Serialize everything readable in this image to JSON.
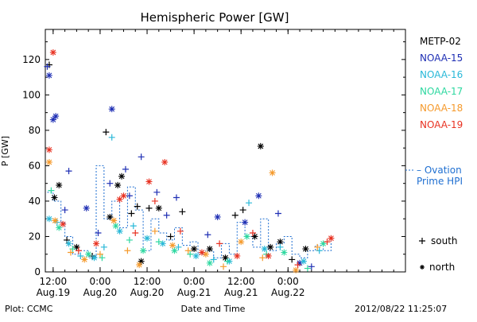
{
  "chart_data": {
    "type": "scatter",
    "title": "Hemispheric Power [GW]",
    "ylabel": "P [GW]",
    "xlabel": "Date and Time",
    "ylim": [
      0,
      137
    ],
    "yticks": [
      0,
      20,
      40,
      60,
      80,
      100,
      120
    ],
    "xlim": [
      "2012-08-19T10:00",
      "2012-08-23T06:00"
    ],
    "xticks": [
      {
        "time": "2012-08-19T12:00",
        "label1": "12:00",
        "label2": "Aug.19"
      },
      {
        "time": "2012-08-20T00:00",
        "label1": "0:00",
        "label2": "Aug.20"
      },
      {
        "time": "2012-08-20T12:00",
        "label1": "12:00",
        "label2": "Aug.20"
      },
      {
        "time": "2012-08-21T00:00",
        "label1": "0:00",
        "label2": "Aug.21"
      },
      {
        "time": "2012-08-21T12:00",
        "label1": "12:00",
        "label2": "Aug.21"
      },
      {
        "time": "2012-08-22T00:00",
        "label1": "0:00",
        "label2": "Aug.22"
      }
    ],
    "footer_left": "Plot: CCMC",
    "footer_right": "2012/08/22 11:25:07",
    "marker_legend": {
      "south": "south",
      "north": "north"
    },
    "ovation_label": [
      "– Ovation",
      "Prime HPI"
    ],
    "ovation_color": "#1f6fd1",
    "series": [
      {
        "name": "METP-02",
        "color": "#000000",
        "points": [
          {
            "t": "2012-08-19T11:00",
            "v": 117,
            "m": "+"
          },
          {
            "t": "2012-08-19T12:20",
            "v": 42,
            "m": "*"
          },
          {
            "t": "2012-08-19T13:30",
            "v": 49,
            "m": "*"
          },
          {
            "t": "2012-08-19T15:30",
            "v": 18,
            "m": "+"
          },
          {
            "t": "2012-08-19T18:00",
            "v": 14,
            "m": "*"
          },
          {
            "t": "2012-08-19T22:00",
            "v": 9,
            "m": "+"
          },
          {
            "t": "2012-08-20T01:30",
            "v": 79,
            "m": "+"
          },
          {
            "t": "2012-08-20T02:30",
            "v": 31,
            "m": "*"
          },
          {
            "t": "2012-08-20T04:30",
            "v": 49,
            "m": "*"
          },
          {
            "t": "2012-08-20T05:30",
            "v": 54,
            "m": "*"
          },
          {
            "t": "2012-08-20T08:00",
            "v": 33,
            "m": "+"
          },
          {
            "t": "2012-08-20T09:30",
            "v": 37,
            "m": "+"
          },
          {
            "t": "2012-08-20T10:30",
            "v": 6,
            "m": "*"
          },
          {
            "t": "2012-08-20T12:30",
            "v": 36,
            "m": "+"
          },
          {
            "t": "2012-08-20T15:00",
            "v": 36,
            "m": "*"
          },
          {
            "t": "2012-08-20T18:00",
            "v": 20,
            "m": "+"
          },
          {
            "t": "2012-08-20T21:00",
            "v": 34,
            "m": "+"
          },
          {
            "t": "2012-08-21T00:00",
            "v": 13,
            "m": "*"
          },
          {
            "t": "2012-08-21T04:00",
            "v": 13,
            "m": "*"
          },
          {
            "t": "2012-08-21T08:00",
            "v": 8,
            "m": "*"
          },
          {
            "t": "2012-08-21T10:30",
            "v": 32,
            "m": "+"
          },
          {
            "t": "2012-08-21T12:30",
            "v": 35,
            "m": "+"
          },
          {
            "t": "2012-08-21T15:30",
            "v": 20,
            "m": "*"
          },
          {
            "t": "2012-08-21T17:00",
            "v": 71,
            "m": "*"
          },
          {
            "t": "2012-08-21T19:30",
            "v": 14,
            "m": "*"
          },
          {
            "t": "2012-08-21T22:00",
            "v": 17,
            "m": "*"
          },
          {
            "t": "2012-08-22T01:00",
            "v": 7,
            "m": "+"
          },
          {
            "t": "2012-08-22T04:30",
            "v": 13,
            "m": "*"
          }
        ]
      },
      {
        "name": "NOAA-15",
        "color": "#1f2fb4",
        "points": [
          {
            "t": "2012-08-19T10:30",
            "v": 116,
            "m": "+"
          },
          {
            "t": "2012-08-19T11:00",
            "v": 111,
            "m": "*"
          },
          {
            "t": "2012-08-19T12:00",
            "v": 86,
            "m": "*"
          },
          {
            "t": "2012-08-19T12:40",
            "v": 88,
            "m": "*"
          },
          {
            "t": "2012-08-19T15:00",
            "v": 35,
            "m": "+"
          },
          {
            "t": "2012-08-19T16:00",
            "v": 57,
            "m": "+"
          },
          {
            "t": "2012-08-19T20:30",
            "v": 36,
            "m": "*"
          },
          {
            "t": "2012-08-19T23:30",
            "v": 22,
            "m": "+"
          },
          {
            "t": "2012-08-20T02:30",
            "v": 50,
            "m": "+"
          },
          {
            "t": "2012-08-20T03:00",
            "v": 92,
            "m": "*"
          },
          {
            "t": "2012-08-20T06:30",
            "v": 58,
            "m": "+"
          },
          {
            "t": "2012-08-20T07:30",
            "v": 43,
            "m": "+"
          },
          {
            "t": "2012-08-20T10:30",
            "v": 65,
            "m": "+"
          },
          {
            "t": "2012-08-20T14:30",
            "v": 45,
            "m": "+"
          },
          {
            "t": "2012-08-20T17:00",
            "v": 32,
            "m": "+"
          },
          {
            "t": "2012-08-20T19:30",
            "v": 42,
            "m": "+"
          },
          {
            "t": "2012-08-21T03:30",
            "v": 21,
            "m": "+"
          },
          {
            "t": "2012-08-21T06:00",
            "v": 31,
            "m": "*"
          },
          {
            "t": "2012-08-21T13:00",
            "v": 28,
            "m": "*"
          },
          {
            "t": "2012-08-21T16:30",
            "v": 43,
            "m": "*"
          },
          {
            "t": "2012-08-21T21:30",
            "v": 33,
            "m": "+"
          },
          {
            "t": "2012-08-22T03:00",
            "v": 5,
            "m": "*"
          },
          {
            "t": "2012-08-22T06:00",
            "v": 3,
            "m": "+"
          }
        ]
      },
      {
        "name": "NOAA-16",
        "color": "#29b8d8",
        "points": [
          {
            "t": "2012-08-19T11:00",
            "v": 30,
            "m": "*"
          },
          {
            "t": "2012-08-19T13:00",
            "v": 28,
            "m": "+"
          },
          {
            "t": "2012-08-19T16:00",
            "v": 16,
            "m": "*"
          },
          {
            "t": "2012-08-19T19:00",
            "v": 9,
            "m": "+"
          },
          {
            "t": "2012-08-19T22:30",
            "v": 8,
            "m": "*"
          },
          {
            "t": "2012-08-20T01:00",
            "v": 14,
            "m": "+"
          },
          {
            "t": "2012-08-20T03:00",
            "v": 76,
            "m": "+"
          },
          {
            "t": "2012-08-20T05:00",
            "v": 23,
            "m": "*"
          },
          {
            "t": "2012-08-20T08:30",
            "v": 26,
            "m": "+"
          },
          {
            "t": "2012-08-20T12:00",
            "v": 19,
            "m": "*"
          },
          {
            "t": "2012-08-20T16:00",
            "v": 16,
            "m": "*"
          },
          {
            "t": "2012-08-20T20:00",
            "v": 14,
            "m": "+"
          },
          {
            "t": "2012-08-21T00:30",
            "v": 9,
            "m": "*"
          },
          {
            "t": "2012-08-21T05:00",
            "v": 7,
            "m": "+"
          },
          {
            "t": "2012-08-21T09:00",
            "v": 6,
            "m": "*"
          },
          {
            "t": "2012-08-21T14:00",
            "v": 39,
            "m": "+"
          },
          {
            "t": "2012-08-21T18:00",
            "v": 13,
            "m": "*"
          },
          {
            "t": "2012-08-21T22:00",
            "v": 14,
            "m": "+"
          },
          {
            "t": "2012-08-22T04:00",
            "v": 6,
            "m": "*"
          },
          {
            "t": "2012-08-22T08:00",
            "v": 12,
            "m": "+"
          }
        ]
      },
      {
        "name": "NOAA-17",
        "color": "#2ed8a0",
        "points": [
          {
            "t": "2012-08-19T11:30",
            "v": 46,
            "m": "+"
          },
          {
            "t": "2012-08-19T13:30",
            "v": 25,
            "m": "*"
          },
          {
            "t": "2012-08-19T17:00",
            "v": 13,
            "m": "+"
          },
          {
            "t": "2012-08-19T21:00",
            "v": 10,
            "m": "*"
          },
          {
            "t": "2012-08-20T00:30",
            "v": 8,
            "m": "+"
          },
          {
            "t": "2012-08-20T04:00",
            "v": 26,
            "m": "*"
          },
          {
            "t": "2012-08-20T07:30",
            "v": 18,
            "m": "+"
          },
          {
            "t": "2012-08-20T11:00",
            "v": 12,
            "m": "*"
          },
          {
            "t": "2012-08-20T15:00",
            "v": 17,
            "m": "+"
          },
          {
            "t": "2012-08-20T19:00",
            "v": 12,
            "m": "*"
          },
          {
            "t": "2012-08-20T23:00",
            "v": 10,
            "m": "+"
          },
          {
            "t": "2012-08-21T04:00",
            "v": 5,
            "m": "*"
          },
          {
            "t": "2012-08-21T08:30",
            "v": 6,
            "m": "+"
          },
          {
            "t": "2012-08-21T13:30",
            "v": 20,
            "m": "*"
          },
          {
            "t": "2012-08-21T18:30",
            "v": 10,
            "m": "+"
          },
          {
            "t": "2012-08-21T23:00",
            "v": 11,
            "m": "*"
          },
          {
            "t": "2012-08-22T05:00",
            "v": 2,
            "m": "+"
          },
          {
            "t": "2012-08-22T09:00",
            "v": 16,
            "m": "*"
          }
        ]
      },
      {
        "name": "NOAA-18",
        "color": "#f59a2c",
        "points": [
          {
            "t": "2012-08-19T11:00",
            "v": 62,
            "m": "*"
          },
          {
            "t": "2012-08-19T12:30",
            "v": 29,
            "m": "*"
          },
          {
            "t": "2012-08-19T16:30",
            "v": 11,
            "m": "+"
          },
          {
            "t": "2012-08-19T20:00",
            "v": 7,
            "m": "*"
          },
          {
            "t": "2012-08-20T00:00",
            "v": 10,
            "m": "+"
          },
          {
            "t": "2012-08-20T03:30",
            "v": 29,
            "m": "*"
          },
          {
            "t": "2012-08-20T07:00",
            "v": 12,
            "m": "+"
          },
          {
            "t": "2012-08-20T10:00",
            "v": 4,
            "m": "*"
          },
          {
            "t": "2012-08-20T14:00",
            "v": 23,
            "m": "+"
          },
          {
            "t": "2012-08-20T18:30",
            "v": 15,
            "m": "*"
          },
          {
            "t": "2012-08-20T22:30",
            "v": 12,
            "m": "+"
          },
          {
            "t": "2012-08-21T03:00",
            "v": 10,
            "m": "*"
          },
          {
            "t": "2012-08-21T07:30",
            "v": 3,
            "m": "+"
          },
          {
            "t": "2012-08-21T12:00",
            "v": 17,
            "m": "*"
          },
          {
            "t": "2012-08-21T17:30",
            "v": 8,
            "m": "+"
          },
          {
            "t": "2012-08-21T20:00",
            "v": 56,
            "m": "*"
          },
          {
            "t": "2012-08-22T02:00",
            "v": 1,
            "m": "*"
          },
          {
            "t": "2012-08-22T07:30",
            "v": 14,
            "m": "+"
          }
        ]
      },
      {
        "name": "NOAA-19",
        "color": "#e83222",
        "points": [
          {
            "t": "2012-08-19T11:00",
            "v": 69,
            "m": "*"
          },
          {
            "t": "2012-08-19T12:00",
            "v": 124,
            "m": "*"
          },
          {
            "t": "2012-08-19T14:30",
            "v": 27,
            "m": "*"
          },
          {
            "t": "2012-08-19T18:30",
            "v": 12,
            "m": "+"
          },
          {
            "t": "2012-08-19T23:00",
            "v": 16,
            "m": "*"
          },
          {
            "t": "2012-08-20T05:00",
            "v": 41,
            "m": "*"
          },
          {
            "t": "2012-08-20T06:00",
            "v": 43,
            "m": "*"
          },
          {
            "t": "2012-08-20T09:00",
            "v": 22,
            "m": "+"
          },
          {
            "t": "2012-08-20T12:30",
            "v": 51,
            "m": "*"
          },
          {
            "t": "2012-08-20T14:00",
            "v": 40,
            "m": "+"
          },
          {
            "t": "2012-08-20T16:30",
            "v": 62,
            "m": "*"
          },
          {
            "t": "2012-08-20T20:30",
            "v": 23,
            "m": "+"
          },
          {
            "t": "2012-08-21T02:00",
            "v": 11,
            "m": "*"
          },
          {
            "t": "2012-08-21T06:30",
            "v": 16,
            "m": "+"
          },
          {
            "t": "2012-08-21T11:00",
            "v": 9,
            "m": "*"
          },
          {
            "t": "2012-08-21T15:00",
            "v": 22,
            "m": "+"
          },
          {
            "t": "2012-08-21T19:00",
            "v": 9,
            "m": "*"
          },
          {
            "t": "2012-08-22T02:30",
            "v": 4,
            "m": "+"
          },
          {
            "t": "2012-08-22T10:00",
            "v": 17,
            "m": "+"
          },
          {
            "t": "2012-08-22T11:00",
            "v": 19,
            "m": "*"
          }
        ]
      }
    ],
    "hpi": [
      {
        "t": "2012-08-19T10:30",
        "v": 45
      },
      {
        "t": "2012-08-19T12:00",
        "v": 40
      },
      {
        "t": "2012-08-19T14:00",
        "v": 28
      },
      {
        "t": "2012-08-19T15:00",
        "v": 20
      },
      {
        "t": "2012-08-19T17:00",
        "v": 10
      },
      {
        "t": "2012-08-19T19:00",
        "v": 12
      },
      {
        "t": "2012-08-19T21:00",
        "v": 8
      },
      {
        "t": "2012-08-19T23:00",
        "v": 60
      },
      {
        "t": "2012-08-20T01:00",
        "v": 30
      },
      {
        "t": "2012-08-20T03:00",
        "v": 40
      },
      {
        "t": "2012-08-20T05:00",
        "v": 25
      },
      {
        "t": "2012-08-20T07:00",
        "v": 48
      },
      {
        "t": "2012-08-20T09:00",
        "v": 35
      },
      {
        "t": "2012-08-20T11:00",
        "v": 12
      },
      {
        "t": "2012-08-20T13:00",
        "v": 30
      },
      {
        "t": "2012-08-20T15:00",
        "v": 22
      },
      {
        "t": "2012-08-20T17:00",
        "v": 18
      },
      {
        "t": "2012-08-20T19:00",
        "v": 25
      },
      {
        "t": "2012-08-20T21:00",
        "v": 15
      },
      {
        "t": "2012-08-20T23:00",
        "v": 17
      },
      {
        "t": "2012-08-21T01:00",
        "v": 10
      },
      {
        "t": "2012-08-21T03:00",
        "v": 12
      },
      {
        "t": "2012-08-21T05:00",
        "v": 8
      },
      {
        "t": "2012-08-21T07:00",
        "v": 16
      },
      {
        "t": "2012-08-21T09:00",
        "v": 10
      },
      {
        "t": "2012-08-21T11:00",
        "v": 28
      },
      {
        "t": "2012-08-21T13:00",
        "v": 20
      },
      {
        "t": "2012-08-21T15:00",
        "v": 14
      },
      {
        "t": "2012-08-21T17:00",
        "v": 30
      },
      {
        "t": "2012-08-21T19:00",
        "v": 12
      },
      {
        "t": "2012-08-21T21:00",
        "v": 16
      },
      {
        "t": "2012-08-21T23:00",
        "v": 20
      },
      {
        "t": "2012-08-22T01:00",
        "v": 10
      },
      {
        "t": "2012-08-22T03:00",
        "v": 8
      },
      {
        "t": "2012-08-22T05:00",
        "v": 12
      },
      {
        "t": "2012-08-22T07:00",
        "v": 15
      },
      {
        "t": "2012-08-22T09:00",
        "v": 12
      },
      {
        "t": "2012-08-22T11:00",
        "v": 18
      }
    ]
  }
}
